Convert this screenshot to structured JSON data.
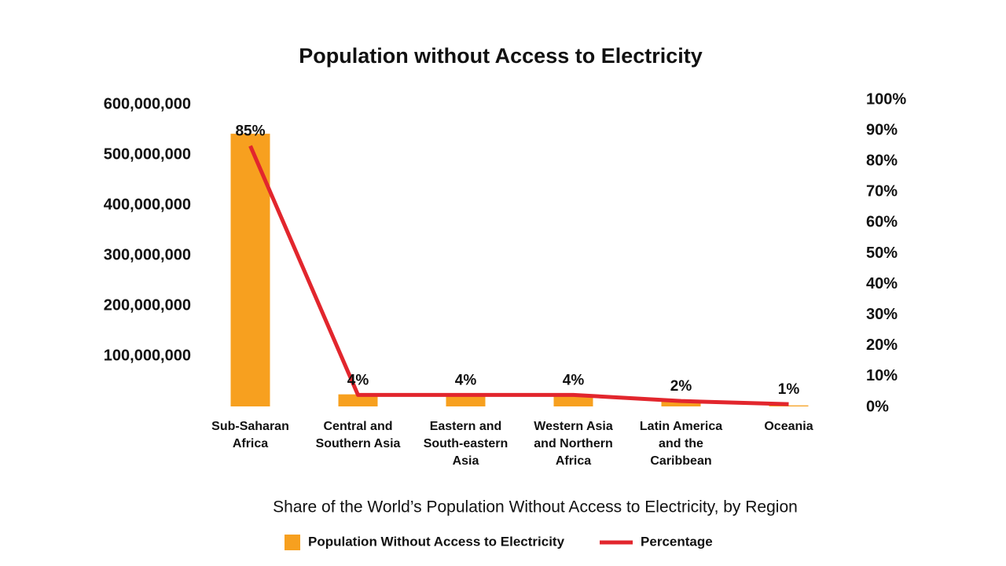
{
  "chart_data": {
    "type": "bar",
    "title": "Population without Access to Electricity",
    "x_label": "Share of the World’s Population Without Access to Electricity, by Region",
    "categories": [
      "Sub-Saharan Africa",
      "Central and Southern Asia",
      "Eastern and South-eastern Asia",
      "Western Asia and Northern Africa",
      "Latin America and the Caribbean",
      "Oceania"
    ],
    "series": [
      {
        "name": "Population Without Access to Electricity",
        "type": "bar",
        "color": "#f7a01f",
        "values": [
          542000000,
          24000000,
          24000000,
          24000000,
          12000000,
          2000000
        ]
      },
      {
        "name": "Percentage",
        "type": "line",
        "axis": "y2",
        "color": "#e2262d",
        "values": [
          85,
          4,
          4,
          4,
          2,
          1
        ],
        "value_labels": [
          "85%",
          "4%",
          "4%",
          "4%",
          "2%",
          "1%"
        ]
      }
    ],
    "ylim": [
      0,
      600000000
    ],
    "yticks": [
      {
        "value": 100000000,
        "label": "100,000,000"
      },
      {
        "value": 200000000,
        "label": "200,000,000"
      },
      {
        "value": 300000000,
        "label": "300,000,000"
      },
      {
        "value": 400000000,
        "label": "400,000,000"
      },
      {
        "value": 500000000,
        "label": "500,000,000"
      },
      {
        "value": 600000000,
        "label": "600,000,000"
      }
    ],
    "y2lim": [
      0,
      100
    ],
    "y2ticks": [
      {
        "value": 0,
        "label": "0%"
      },
      {
        "value": 10,
        "label": "10%"
      },
      {
        "value": 20,
        "label": "20%"
      },
      {
        "value": 30,
        "label": "30%"
      },
      {
        "value": 40,
        "label": "40%"
      },
      {
        "value": 50,
        "label": "50%"
      },
      {
        "value": 60,
        "label": "60%"
      },
      {
        "value": 70,
        "label": "70%"
      },
      {
        "value": 80,
        "label": "80%"
      },
      {
        "value": 90,
        "label": "90%"
      },
      {
        "value": 100,
        "label": "100%"
      }
    ],
    "grid": false,
    "legend": "bottom"
  }
}
